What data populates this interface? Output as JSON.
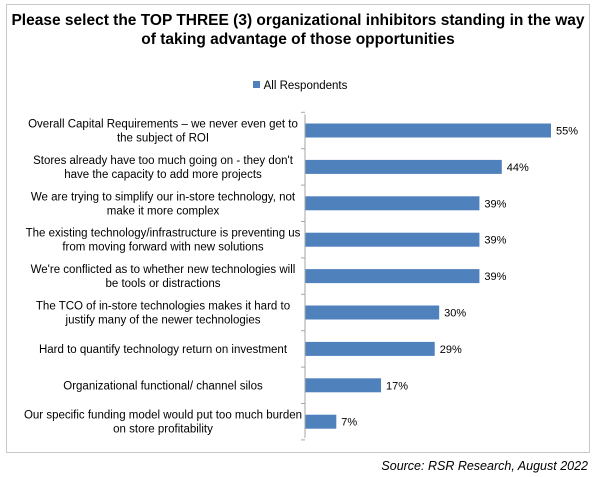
{
  "chart_data": {
    "type": "bar",
    "orientation": "horizontal",
    "title": "Please select the TOP THREE (3) organizational inhibitors standing in the way of taking advantage of those opportunities",
    "categories": [
      [
        "Overall Capital Requirements – we never even get to",
        "the subject of ROI"
      ],
      [
        "Stores already have too much going on - they don't",
        "have the capacity to add more projects"
      ],
      [
        "We are trying to simplify our in-store technology, not",
        "make it more complex"
      ],
      [
        "The existing technology/infrastructure is preventing us",
        "from moving forward with new solutions"
      ],
      [
        "We're conflicted as to whether new technologies will",
        "be tools or distractions"
      ],
      [
        "The TCO of in-store technologies makes it hard to",
        "justify many of the newer technologies"
      ],
      [
        "Hard to quantify technology return on investment"
      ],
      [
        "Organizational functional/ channel silos"
      ],
      [
        "Our specific funding model would put too much burden",
        "on store profitability"
      ]
    ],
    "series": [
      {
        "name": "All Respondents",
        "values": [
          55,
          44,
          39,
          39,
          39,
          30,
          29,
          17,
          7
        ],
        "labels": [
          "55%",
          "44%",
          "39%",
          "39%",
          "39%",
          "30%",
          "29%",
          "17%",
          "7%"
        ],
        "color": "#4f81bd"
      }
    ],
    "xlim": [
      0,
      55
    ],
    "legend": "top-center",
    "grid": false,
    "axis_color": "#a6a6a6"
  },
  "source": "Source: RSR Research, August 2022"
}
